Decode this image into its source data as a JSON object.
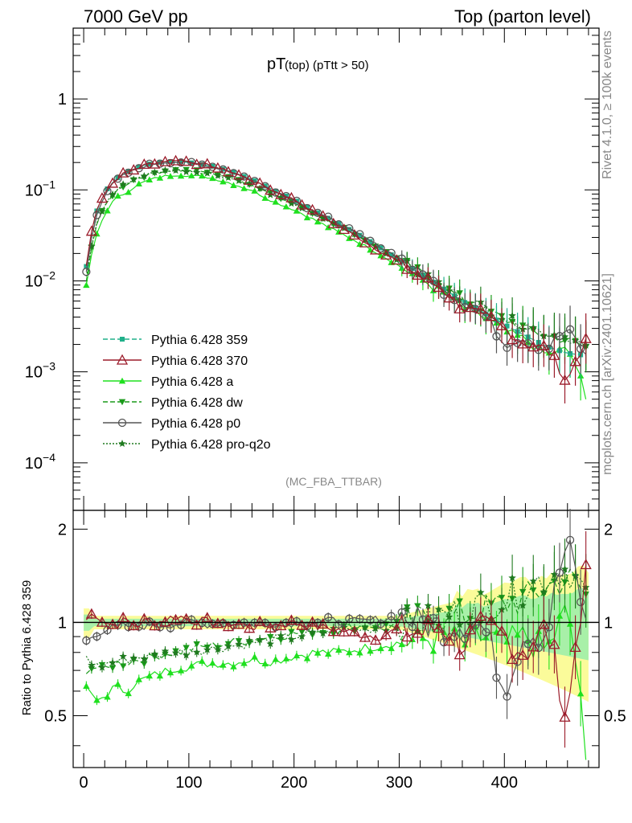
{
  "header": {
    "left": "7000 GeV pp",
    "right": "Top (parton level)"
  },
  "side": {
    "top": "Rivet 4.1.0, ≥ 100k events",
    "bottom": "mcplots.cern.ch [arXiv:2401.10621]"
  },
  "plot_title": {
    "main": "pT",
    "sub": " (top) (pTtt > 50)"
  },
  "analysis_tag": "(MC_FBA_TTBAR)",
  "ratio_ylabel": "Ratio to Pythia 6.428 359",
  "colors": {
    "p359": "#20b08a",
    "p370": "#9b1b2a",
    "pa": "#1fe01f",
    "pdw": "#1a9a1a",
    "pp0": "#555555",
    "pq2o": "#1f7a1f",
    "band_yellow": "#fbfb9a",
    "band_green": "#a8f0a8"
  },
  "chart_data": [
    {
      "type": "line",
      "title": "pT (top) (pTtt > 50)",
      "xlim": [
        -10,
        490
      ],
      "ylim_log": [
        3e-05,
        6
      ],
      "yscale": "log",
      "x_ticks": [
        "0",
        "100",
        "200",
        "300",
        "400"
      ],
      "y_ticks": [
        {
          "value": 1,
          "base": "1",
          "exp": ""
        },
        {
          "value": 0.1,
          "base": "10",
          "exp": "−1"
        },
        {
          "value": 0.01,
          "base": "10",
          "exp": "−2"
        },
        {
          "value": 0.001,
          "base": "10",
          "exp": "−3"
        },
        {
          "value": 0.0001,
          "base": "10",
          "exp": "−4"
        }
      ],
      "reference": {
        "name": "Pythia 6.428 359",
        "x": [
          0,
          10,
          20,
          30,
          40,
          50,
          60,
          70,
          80,
          90,
          100,
          120,
          140,
          160,
          180,
          200,
          220,
          240,
          260,
          280,
          300,
          320,
          340,
          360,
          380,
          400,
          420,
          440,
          460,
          480
        ],
        "y": [
          0.0095,
          0.05,
          0.095,
          0.13,
          0.155,
          0.175,
          0.19,
          0.2,
          0.205,
          0.205,
          0.2,
          0.185,
          0.16,
          0.13,
          0.1,
          0.078,
          0.058,
          0.044,
          0.033,
          0.024,
          0.017,
          0.012,
          0.0085,
          0.006,
          0.0045,
          0.0033,
          0.0025,
          0.0019,
          0.0016,
          0.0015
        ]
      },
      "series": [
        {
          "name": "Pythia 6.428 359",
          "marker": "square",
          "dash": "dashed",
          "ratio": [
            1,
            1,
            1,
            1,
            1,
            1,
            1,
            1,
            1,
            1,
            1,
            1,
            1,
            1,
            1,
            1,
            1,
            1,
            1,
            1,
            1,
            1,
            1,
            1,
            1,
            1,
            1,
            1,
            1,
            1
          ]
        },
        {
          "name": "Pythia 6.428 370",
          "marker": "triangle-open",
          "dash": "solid",
          "ratio": [
            1.0,
            1.08,
            1.0,
            0.98,
            1.02,
            0.97,
            1.02,
            1.0,
            1.03,
            1.05,
            1.02,
            1.0,
            0.99,
            0.97,
            0.98,
            1.0,
            0.97,
            0.95,
            0.92,
            0.9,
            0.95,
            0.92,
            0.98,
            0.85,
            0.95,
            0.9,
            0.8,
            0.95,
            0.45,
            1.5
          ]
        },
        {
          "name": "Pythia 6.428 a",
          "marker": "triangle",
          "dash": "solid",
          "ratio": [
            0.65,
            0.55,
            0.58,
            0.62,
            0.6,
            0.64,
            0.66,
            0.68,
            0.7,
            0.72,
            0.72,
            0.74,
            0.74,
            0.76,
            0.75,
            0.78,
            0.8,
            0.8,
            0.82,
            0.84,
            0.86,
            0.88,
            0.9,
            0.85,
            0.9,
            0.85,
            0.9,
            0.8,
            1.1,
            0.2
          ]
        },
        {
          "name": "Pythia 6.428 dw",
          "marker": "triangle-down",
          "dash": "dashed",
          "ratio": [
            0.7,
            0.72,
            0.7,
            0.74,
            0.74,
            0.76,
            0.76,
            0.78,
            0.8,
            0.8,
            0.82,
            0.84,
            0.86,
            0.88,
            0.9,
            0.92,
            0.94,
            0.95,
            0.97,
            0.98,
            1.0,
            1.02,
            1.05,
            1.05,
            1.1,
            1.15,
            1.2,
            1.3,
            1.4,
            1.2
          ]
        },
        {
          "name": "Pythia 6.428 p0",
          "marker": "circle-open",
          "dash": "solid",
          "ratio": [
            0.85,
            0.92,
            0.95,
            0.96,
            0.97,
            0.97,
            0.98,
            0.98,
            0.99,
            0.99,
            1.0,
            0.99,
            1.0,
            0.99,
            1.0,
            1.0,
            1.0,
            1.01,
            1.0,
            1.02,
            1.05,
            1.0,
            0.98,
            1.0,
            0.97,
            0.6,
            0.95,
            0.9,
            1.8,
            0.85
          ]
        },
        {
          "name": "Pythia 6.428 pro-q2o",
          "marker": "star",
          "dash": "dotted",
          "ratio": [
            0.8,
            0.72,
            0.73,
            0.75,
            0.76,
            0.77,
            0.78,
            0.78,
            0.8,
            0.8,
            0.81,
            0.82,
            0.84,
            0.86,
            0.88,
            0.9,
            0.92,
            0.94,
            0.95,
            0.96,
            0.98,
            1.0,
            1.05,
            1.1,
            1.15,
            1.2,
            1.3,
            1.4,
            1.5,
            1.2
          ]
        }
      ]
    },
    {
      "type": "line",
      "ylabel": "Ratio to Pythia 6.428 359",
      "xlim": [
        -10,
        490
      ],
      "ylim": [
        0.34,
        2.3
      ],
      "yscale": "log",
      "y_ticks_left": [
        "2",
        "1",
        "0.5"
      ],
      "y_ticks_right": [
        "2",
        "1",
        "0.5"
      ],
      "y_tick_values": [
        2,
        1,
        0.5
      ]
    }
  ]
}
